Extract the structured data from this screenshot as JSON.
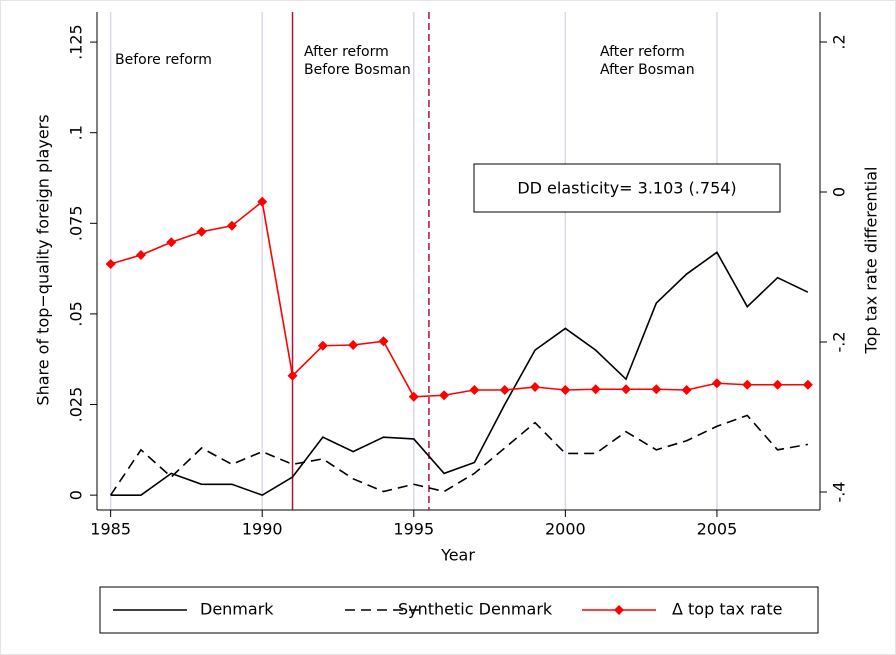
{
  "chart_data": {
    "type": "line",
    "xlabel": "Year",
    "ylabel": "Share of top−quality foreign players",
    "y2label": "Top tax rate differential",
    "x": [
      1985,
      1986,
      1987,
      1988,
      1989,
      1990,
      1991,
      1992,
      1993,
      1994,
      1995,
      1996,
      1997,
      1998,
      1999,
      2000,
      2001,
      2002,
      2003,
      2004,
      2005,
      2006,
      2007,
      2008
    ],
    "series": [
      {
        "name": "Denmark",
        "color": "#000000",
        "dash": "solid",
        "marker": false,
        "values": [
          0,
          0,
          0.006,
          0.003,
          0.003,
          0,
          0.005,
          0.016,
          0.012,
          0.016,
          0.0155,
          0.006,
          0.009,
          0.025,
          0.04,
          0.046,
          0.04,
          0.032,
          0.053,
          0.061,
          0.067,
          0.052,
          0.06,
          0.056
        ]
      },
      {
        "name": "Synthetic Denmark",
        "color": "#000000",
        "dash": "dashed",
        "marker": false,
        "values": [
          0,
          0.0125,
          0.005,
          0.013,
          0.0085,
          0.012,
          0.0085,
          0.01,
          0.0045,
          0.001,
          0.003,
          0.001,
          0.006,
          0.013,
          0.02,
          0.0115,
          0.0115,
          0.0175,
          0.0125,
          0.015,
          0.019,
          0.022,
          0.0125,
          0.014
        ]
      },
      {
        "name": "Δ top tax rate",
        "color": "#ff0000",
        "dash": "solid",
        "marker": true,
        "axis": "y2",
        "values": [
          -0.096,
          -0.084,
          -0.067,
          -0.053,
          -0.045,
          -0.013,
          -0.245,
          -0.205,
          -0.204,
          -0.199,
          -0.273,
          -0.271,
          -0.264,
          -0.264,
          -0.26,
          -0.264,
          -0.263,
          -0.263,
          -0.263,
          -0.264,
          -0.255,
          -0.257,
          -0.257,
          -0.257
        ]
      }
    ],
    "xlim": [
      1984.55,
      2008.4
    ],
    "xticks": [
      1985,
      1990,
      1995,
      2000,
      2005
    ],
    "ylim": [
      -0.0041,
      0.1333
    ],
    "yticks": [
      0,
      {
        "value": 0.025,
        "label": ".025"
      },
      {
        "value": 0.05,
        "label": ".05"
      },
      {
        "value": 0.075,
        "label": ".075"
      },
      {
        "value": 0.1,
        "label": ".1"
      },
      {
        "value": 0.125,
        "label": ".125"
      }
    ],
    "y2lim": [
      -0.424,
      0.24
    ],
    "y2ticks": [
      {
        "value": -0.4,
        "label": "-.4"
      },
      {
        "value": -0.2,
        "label": "-.2"
      },
      0,
      {
        "value": 0.2,
        "label": ".2"
      }
    ],
    "grid": "x",
    "reference_lines": [
      {
        "x": 1991,
        "style": "solid",
        "color": "#b0103a"
      },
      {
        "x": 1995.5,
        "style": "dashed",
        "color": "#b0103a"
      }
    ],
    "annotations": [
      [
        "Before reform"
      ],
      [
        "After reform",
        "Before Bosman"
      ],
      [
        "After reform",
        "After Bosman"
      ]
    ],
    "box_text": "DD elasticity= 3.103 (.754)",
    "legend": "bottom"
  }
}
